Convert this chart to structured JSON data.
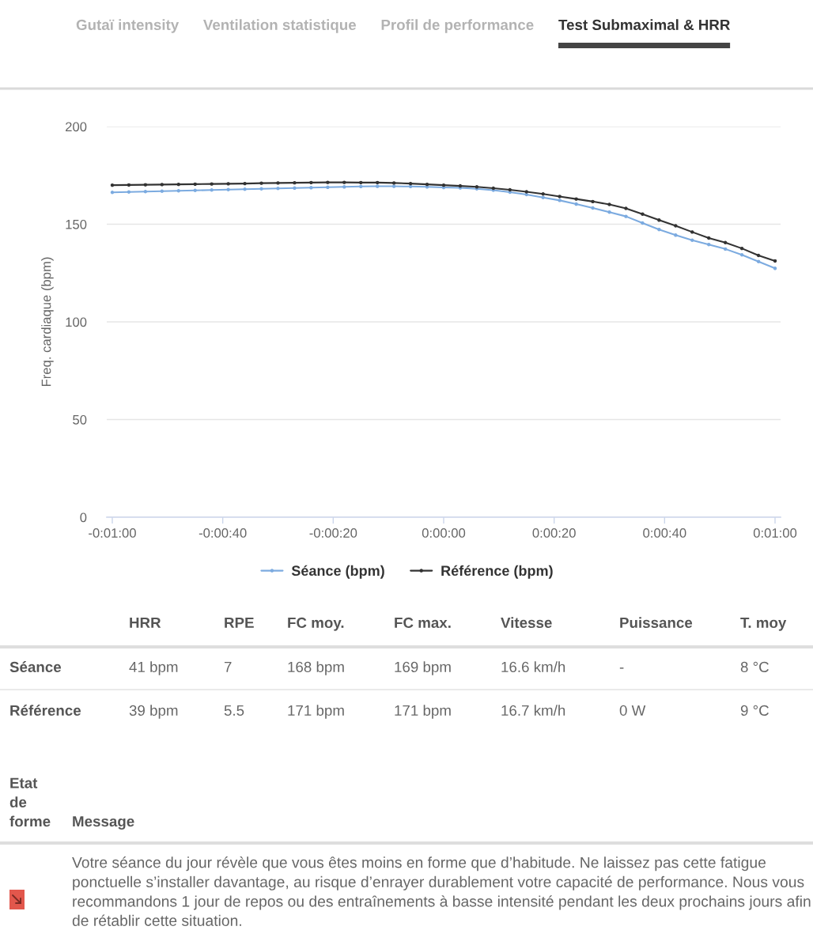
{
  "chart_data": [
    {
      "type": "line",
      "title": "Test Submaximal & HRR",
      "annotations": [
        "Gutaï intensity",
        "Ventilation statistique",
        "Profil de performance"
      ],
      "ylabel": "Freq. cardiaque (bpm)",
      "x": [
        -60,
        -57,
        -54,
        -51,
        -48,
        -45,
        -42,
        -39,
        -36,
        -33,
        -30,
        -27,
        -24,
        -21,
        -18,
        -15,
        -12,
        -9,
        -6,
        -3,
        0,
        3,
        6,
        9,
        12,
        15,
        18,
        21,
        24,
        27,
        30,
        33,
        36,
        39,
        42,
        45,
        48,
        51,
        54,
        57,
        60
      ],
      "series": [
        {
          "name": "Séance (bpm)",
          "color": "#7cabe0",
          "values": [
            166.3,
            166.5,
            166.7,
            166.9,
            167.1,
            167.3,
            167.5,
            167.7,
            167.9,
            168.1,
            168.3,
            168.5,
            168.7,
            168.9,
            169.1,
            169.3,
            169.4,
            169.4,
            169.3,
            169.1,
            168.8,
            168.6,
            168.1,
            167.4,
            166.4,
            165.2,
            163.7,
            162.2,
            160.3,
            158.3,
            156.2,
            154.0,
            150.6,
            147.3,
            144.4,
            141.8,
            139.6,
            137.3,
            134.3,
            130.9,
            127.4
          ]
        },
        {
          "name": "Référence (bpm)",
          "color": "#333333",
          "values": [
            170.0,
            170.1,
            170.2,
            170.3,
            170.4,
            170.5,
            170.6,
            170.7,
            170.8,
            171.0,
            171.1,
            171.2,
            171.3,
            171.4,
            171.4,
            171.3,
            171.3,
            171.1,
            170.8,
            170.4,
            170.0,
            169.6,
            169.1,
            168.4,
            167.6,
            166.6,
            165.5,
            164.2,
            162.9,
            161.6,
            160.1,
            158.1,
            155.2,
            152.1,
            149.2,
            146.0,
            142.9,
            140.6,
            137.6,
            134.0,
            131.2
          ]
        }
      ],
      "xlim": [
        -61,
        61
      ],
      "xticks": [
        {
          "value": -60,
          "label": "-0:01:00"
        },
        {
          "value": -40,
          "label": "-0:00:40"
        },
        {
          "value": -20,
          "label": "-0:00:20"
        },
        {
          "value": 0,
          "label": "0:00:00"
        },
        {
          "value": 20,
          "label": "0:00:20"
        },
        {
          "value": 40,
          "label": "0:00:40"
        },
        {
          "value": 60,
          "label": "0:01:00"
        }
      ],
      "ylim": [
        0,
        200
      ],
      "yticks": [
        0,
        50,
        100,
        150,
        200
      ],
      "grid": "y",
      "legend": "bottom",
      "marker": "circle",
      "line_style": "solid"
    },
    {
      "type": "other",
      "categories": [
        "HRR",
        "RPE",
        "FC moy.",
        "FC max.",
        "Vitesse",
        "Puissance",
        "T. moy"
      ],
      "y_categories": [
        "Séance",
        "Référence"
      ],
      "cell_labels": [
        [
          "41 bpm",
          "7",
          "168 bpm",
          "169 bpm",
          "16.6 km/h",
          "-",
          "8 °C"
        ],
        [
          "39 bpm",
          "5.5",
          "171 bpm",
          "171 bpm",
          "16.7 km/h",
          "0 W",
          "9 °C"
        ]
      ]
    },
    {
      "type": "other",
      "categories": [
        "Etat de forme",
        "Message"
      ],
      "annotations": [
        "Votre séance du jour révèle que vous êtes moins en forme que d’habitude. Ne laissez pas cette fatigue ponctuelle s’installer davantage, au risque d’enrayer durablement votre capacité de performance. Nous vous recommandons 1 jour de repos ou des entraînements à basse intensité pendant les deux prochains jours afin de rétablir cette situation."
      ]
    }
  ]
}
